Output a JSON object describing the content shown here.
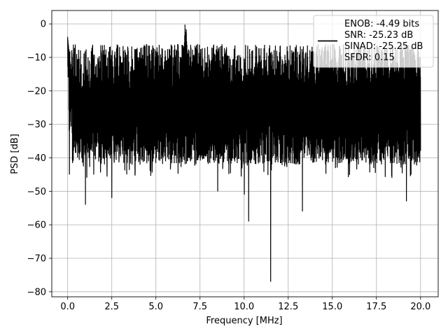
{
  "chart_data": {
    "type": "line",
    "title": "",
    "xlabel": "Frequency [MHz]",
    "ylabel": "PSD [dB]",
    "xlim": [
      -0.9,
      21.0
    ],
    "ylim": [
      -81.5,
      4.0
    ],
    "xticks": [
      0.0,
      2.5,
      5.0,
      7.5,
      10.0,
      12.5,
      15.0,
      17.5,
      20.0
    ],
    "xtick_labels": [
      "0.0",
      "2.5",
      "5.0",
      "7.5",
      "10.0",
      "12.5",
      "15.0",
      "17.5",
      "20.0"
    ],
    "yticks": [
      0,
      -10,
      -20,
      -30,
      -40,
      -50,
      -60,
      -70,
      -80
    ],
    "ytick_labels": [
      "0",
      "−10",
      "−20",
      "−30",
      "−40",
      "−50",
      "−60",
      "−70",
      "−80"
    ],
    "grid": true,
    "legend_position": "top-right",
    "line_color": "#000000",
    "grid_color": "#b0b0b0",
    "legend_lines": [
      "ENOB: -4.49 bits",
      "SNR: -25.23 dB",
      "SINAD: -25.25 dB",
      "SFDR: 0.15"
    ],
    "series": [
      {
        "x_start": 0.0,
        "x_end": 20.0,
        "noise_floor_mean": -24,
        "noise_floor_upper": -12,
        "noise_floor_lower": -38,
        "peaks": [
          {
            "x": 0.0,
            "y": -3
          },
          {
            "x": 6.65,
            "y": 0
          },
          {
            "x": 6.72,
            "y": -1
          },
          {
            "x": 6.5,
            "y": -5
          }
        ],
        "dips": [
          {
            "x": 0.1,
            "y": -45
          },
          {
            "x": 1.0,
            "y": -54
          },
          {
            "x": 2.5,
            "y": -52
          },
          {
            "x": 8.5,
            "y": -50
          },
          {
            "x": 10.0,
            "y": -51
          },
          {
            "x": 10.25,
            "y": -59
          },
          {
            "x": 11.5,
            "y": -77
          },
          {
            "x": 13.3,
            "y": -56
          },
          {
            "x": 19.2,
            "y": -53
          }
        ]
      }
    ]
  }
}
